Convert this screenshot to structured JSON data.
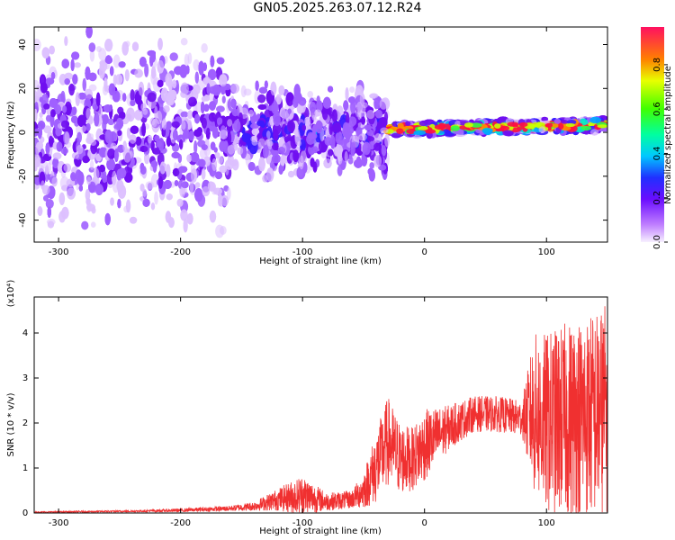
{
  "title": "GN05.2025.263.07.12.R24",
  "colors": {
    "signal": "#f03030",
    "axis": "#000000"
  },
  "colorbar": {
    "label": "Normalized spectral amplitude",
    "ticks": [
      "0.0",
      "0.2",
      "0.4",
      "0.6",
      "0.8"
    ],
    "range": [
      0,
      0.97
    ]
  },
  "chart_data": [
    {
      "type": "heatmap",
      "xlabel": "Height of straight line (km)",
      "ylabel": "Frequency (Hz)",
      "xlim": [
        -320,
        150
      ],
      "ylim": [
        -50,
        48
      ],
      "xticks": [
        "-300",
        "-200",
        "-100",
        "0",
        "100"
      ],
      "yticks": [
        "-40",
        "-20",
        "0",
        "20",
        "40"
      ]
    },
    {
      "type": "line",
      "xlabel": "Height of straight line (km)",
      "ylabel": "SNR (10 * v/v)",
      "scale_label": "(x10⁴)",
      "xlim": [
        -320,
        150
      ],
      "ylim": [
        0,
        4.8
      ],
      "xticks": [
        "-300",
        "-200",
        "-100",
        "0",
        "100"
      ],
      "yticks": [
        "0",
        "1",
        "2",
        "3",
        "4"
      ],
      "series": [
        {
          "x": [
            -320,
            -280,
            -240,
            -200,
            -160,
            -140,
            -120,
            -100,
            -80,
            -60,
            -50,
            -40,
            -30,
            -20,
            -10,
            0,
            20,
            40,
            60,
            80,
            90,
            100,
            120,
            140,
            150
          ],
          "y": [
            0.02,
            0.03,
            0.04,
            0.06,
            0.1,
            0.15,
            0.3,
            0.4,
            0.25,
            0.3,
            0.5,
            1.0,
            1.6,
            1.2,
            1.2,
            1.5,
            1.9,
            2.2,
            2.2,
            2.1,
            2.2,
            2.0,
            2.1,
            2.2,
            2.3
          ],
          "amplitude": [
            0.01,
            0.02,
            0.02,
            0.04,
            0.06,
            0.1,
            0.25,
            0.45,
            0.2,
            0.2,
            0.4,
            0.8,
            1.0,
            0.8,
            0.7,
            0.8,
            0.5,
            0.4,
            0.4,
            0.4,
            1.8,
            2.0,
            2.2,
            2.3,
            2.4
          ]
        }
      ]
    }
  ]
}
